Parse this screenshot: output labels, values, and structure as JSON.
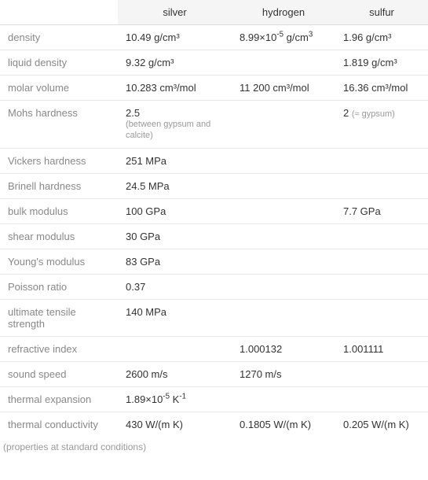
{
  "columns": [
    "silver",
    "hydrogen",
    "sulfur"
  ],
  "rows": [
    {
      "label": "density",
      "silver": "10.49 g/cm³",
      "hydrogen_html": "8.99×10<sup>-5</sup> g/cm<sup>3</sup>",
      "sulfur": "1.96 g/cm³"
    },
    {
      "label": "liquid density",
      "silver": "9.32 g/cm³",
      "hydrogen": "",
      "sulfur": "1.819 g/cm³"
    },
    {
      "label": "molar volume",
      "silver": "10.283 cm³/mol",
      "hydrogen": "11 200 cm³/mol",
      "sulfur": "16.36 cm³/mol"
    },
    {
      "label": "Mohs hardness",
      "silver": "2.5",
      "silver_sub": "(between gypsum and calcite)",
      "hydrogen": "",
      "sulfur_html": "2 <span class=\"sub\" style=\"display:inline\">(≈ gypsum)</span>"
    },
    {
      "label": "Vickers hardness",
      "silver": "251 MPa",
      "hydrogen": "",
      "sulfur": ""
    },
    {
      "label": "Brinell hardness",
      "silver": "24.5 MPa",
      "hydrogen": "",
      "sulfur": ""
    },
    {
      "label": "bulk modulus",
      "silver": "100 GPa",
      "hydrogen": "",
      "sulfur": "7.7 GPa"
    },
    {
      "label": "shear modulus",
      "silver": "30 GPa",
      "hydrogen": "",
      "sulfur": ""
    },
    {
      "label": "Young's modulus",
      "silver": "83 GPa",
      "hydrogen": "",
      "sulfur": ""
    },
    {
      "label": "Poisson ratio",
      "silver": "0.37",
      "hydrogen": "",
      "sulfur": ""
    },
    {
      "label": "ultimate tensile strength",
      "silver": "140 MPa",
      "hydrogen": "",
      "sulfur": ""
    },
    {
      "label": "refractive index",
      "silver": "",
      "hydrogen": "1.000132",
      "sulfur": "1.001111"
    },
    {
      "label": "sound speed",
      "silver": "2600 m/s",
      "hydrogen": "1270 m/s",
      "sulfur": ""
    },
    {
      "label": "thermal expansion",
      "silver_html": "1.89×10<sup>-5</sup> K<sup>-1</sup>",
      "hydrogen": "",
      "sulfur": ""
    },
    {
      "label": "thermal conductivity",
      "silver": "430 W/(m K)",
      "hydrogen": "0.1805 W/(m K)",
      "sulfur": "0.205 W/(m K)"
    }
  ],
  "footnote": "(properties at standard conditions)",
  "style": {
    "header_bg": "#f5f5f5",
    "row_border": "#e8e8e8",
    "label_color": "#888888",
    "value_color": "#333333",
    "sub_color": "#999999",
    "font_size_main": 13,
    "font_size_sub": 11,
    "font_size_footnote": 12
  }
}
